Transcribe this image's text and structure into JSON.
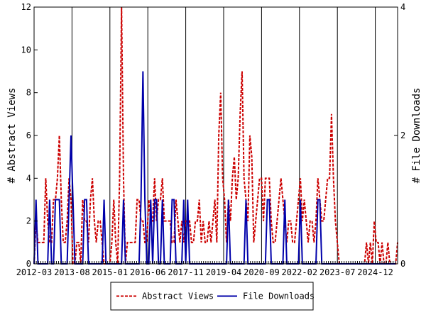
{
  "chart_data": {
    "type": "line",
    "title": "",
    "xlabel": "",
    "ylabel_left": "# Abstract Views",
    "ylabel_right": "# File Downloads",
    "x_start": "2012-03",
    "x_end": "2025-10",
    "x_tick_labels": [
      "2012-03",
      "2013-08",
      "2015-01",
      "2016-06",
      "2017-11",
      "2019-04",
      "2020-09",
      "2022-02",
      "2023-07",
      "2024-12"
    ],
    "ylim_left": [
      0,
      12
    ],
    "yticks_left": [
      0,
      2,
      4,
      6,
      8,
      10,
      12
    ],
    "ylim_right": [
      0,
      4
    ],
    "yticks_right": [
      0,
      2,
      4
    ],
    "grid": "vertical",
    "legend_position": "bottom",
    "series": [
      {
        "name": "Abstract Views",
        "axis": "left",
        "color": "#cc0000",
        "style": "dashed",
        "values": [
          0,
          2,
          1,
          1,
          1,
          1,
          4,
          2,
          1,
          1,
          3,
          3,
          4,
          6,
          3,
          1,
          1,
          2,
          4,
          3,
          0,
          0,
          1,
          1,
          0,
          3,
          2,
          2,
          1,
          3,
          4,
          2,
          1,
          2,
          2,
          1,
          0,
          0,
          0,
          0,
          1,
          3,
          1,
          0,
          4,
          12,
          4,
          0,
          1,
          1,
          1,
          1,
          1,
          3,
          3,
          2,
          2,
          1,
          1,
          3,
          2,
          2,
          4,
          2,
          3,
          3,
          4,
          2,
          2,
          2,
          2,
          1,
          1,
          3,
          2,
          1,
          2,
          1,
          2,
          2,
          2,
          1,
          1,
          2,
          2,
          3,
          1,
          2,
          1,
          1,
          2,
          1,
          2,
          3,
          1,
          6,
          8,
          4,
          3,
          1,
          3,
          2,
          4,
          5,
          3,
          4,
          7,
          9,
          4,
          3,
          2,
          6,
          5,
          1,
          2,
          3,
          4,
          4,
          2,
          4,
          4,
          4,
          2,
          1,
          1,
          2,
          3,
          4,
          3,
          2,
          1,
          2,
          2,
          1,
          1,
          2,
          3,
          4,
          2,
          3,
          2,
          1,
          2,
          2,
          1,
          2,
          4,
          3,
          2,
          2,
          3,
          4,
          4,
          7,
          4,
          2,
          1,
          0,
          0,
          0,
          0,
          0,
          0,
          0,
          0,
          0,
          0,
          0,
          0,
          0,
          0,
          1,
          0,
          1,
          0,
          2,
          1,
          1,
          0,
          1,
          0,
          0,
          1,
          0,
          0,
          0,
          0,
          1
        ]
      },
      {
        "name": "File Downloads",
        "axis": "right",
        "color": "#0000aa",
        "style": "solid",
        "values": [
          0,
          1,
          0,
          0,
          0,
          0,
          0,
          0,
          1,
          0,
          0,
          1,
          1,
          1,
          0,
          0,
          0,
          0,
          1,
          2,
          1,
          0,
          0,
          0,
          0,
          0,
          1,
          1,
          0,
          0,
          0,
          0,
          0,
          0,
          0,
          0,
          1,
          0,
          0,
          0,
          0,
          0,
          0,
          0,
          0,
          0,
          1,
          0,
          0,
          0,
          0,
          0,
          0,
          0,
          0,
          1,
          3,
          1,
          0,
          0,
          1,
          0,
          1,
          1,
          0,
          0,
          1,
          0,
          0,
          0,
          0,
          1,
          1,
          0,
          0,
          0,
          0,
          1,
          0,
          1,
          0,
          0,
          0,
          0,
          0,
          0,
          0,
          0,
          0,
          0,
          0,
          0,
          0,
          0,
          0,
          0,
          0,
          0,
          0,
          0,
          1,
          0,
          0,
          0,
          0,
          0,
          0,
          0,
          0,
          1,
          0,
          0,
          0,
          0,
          0,
          0,
          0,
          0,
          0,
          0,
          1,
          1,
          0,
          0,
          0,
          0,
          0,
          0,
          0,
          1,
          0,
          0,
          0,
          0,
          0,
          0,
          0,
          1,
          0,
          0,
          0,
          0,
          0,
          0,
          0,
          0,
          1,
          1,
          0,
          0,
          0,
          0,
          0,
          0,
          0,
          0,
          0,
          0,
          0,
          0,
          0,
          0,
          0,
          0,
          0,
          0,
          0,
          0,
          0,
          0,
          0,
          0,
          0,
          0,
          0,
          0,
          0,
          0,
          0,
          0,
          0,
          0,
          0,
          0,
          0,
          0,
          0
        ]
      }
    ]
  }
}
